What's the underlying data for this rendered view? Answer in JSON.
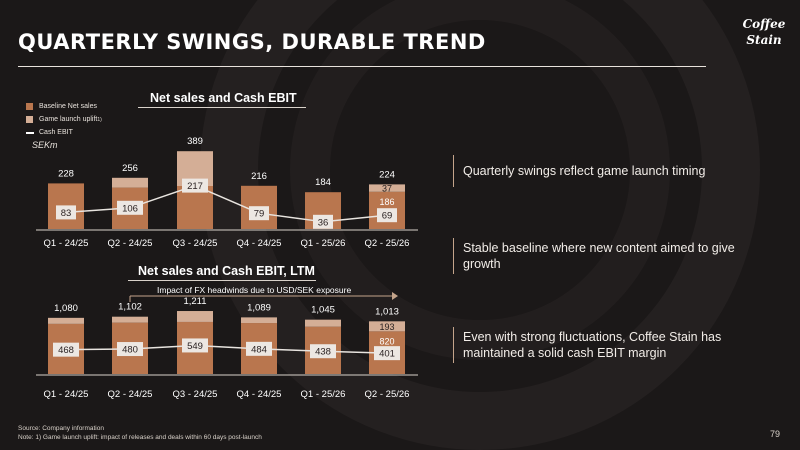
{
  "title": "QUARTERLY SWINGS, DURABLE TREND",
  "logo_text": "Coffee Stain",
  "legend": {
    "baseline": "Baseline Net sales",
    "uplift": "Game launch uplift",
    "uplift_note": "1)",
    "cash_ebit": "Cash EBIT"
  },
  "unit": "SEKm",
  "colors": {
    "baseline": "#b9764e",
    "uplift": "#d4ae96",
    "line": "#e8e4df",
    "background": "#1b1818",
    "label_box": "#ece7e2"
  },
  "fx_note": "Impact of FX headwinds due to USD/SEK exposure",
  "chart_data": [
    {
      "type": "bar",
      "title": "Net sales and Cash EBIT",
      "categories": [
        "Q1 - 24/25",
        "Q2 - 24/25",
        "Q3 - 24/25",
        "Q4 - 24/25",
        "Q1 - 25/26",
        "Q2 - 25/26"
      ],
      "totals": [
        228,
        256,
        389,
        216,
        184,
        224
      ],
      "series": [
        {
          "name": "Baseline Net sales",
          "values": [
            228,
            207,
            215,
            216,
            184,
            186
          ]
        },
        {
          "name": "Game launch uplift",
          "values": [
            0,
            49,
            174,
            0,
            0,
            37
          ]
        },
        {
          "name": "Cash EBIT",
          "kind": "line",
          "values": [
            83,
            106,
            217,
            79,
            36,
            69
          ]
        }
      ],
      "segment_labels": {
        "baseline": [
          null,
          null,
          null,
          null,
          null,
          "186"
        ],
        "uplift": [
          null,
          null,
          null,
          null,
          null,
          "37"
        ]
      }
    },
    {
      "type": "bar",
      "title": "Net sales and Cash EBIT, LTM",
      "categories": [
        "Q1 - 24/25",
        "Q2 - 24/25",
        "Q3 - 24/25",
        "Q4 - 24/25",
        "Q1 - 25/26",
        "Q2 - 25/26"
      ],
      "totals": [
        "1,080",
        "1,102",
        "1,211",
        "1,089",
        "1,045",
        "1,013"
      ],
      "series": [
        {
          "name": "Baseline Net sales",
          "values": [
            964,
            988,
            1001,
            980,
            910,
            820
          ]
        },
        {
          "name": "Game launch uplift",
          "values": [
            116,
            114,
            210,
            109,
            135,
            193
          ]
        },
        {
          "name": "Cash EBIT",
          "kind": "line",
          "values": [
            468,
            480,
            549,
            484,
            438,
            401
          ]
        }
      ],
      "segment_labels": {
        "baseline": [
          null,
          null,
          null,
          null,
          null,
          "820"
        ],
        "uplift": [
          null,
          null,
          null,
          null,
          null,
          "193"
        ]
      }
    }
  ],
  "takeaways": [
    "Quarterly swings reflect game launch timing",
    "Stable baseline where new content aimed to give growth",
    "Even with strong fluctuations, Coffee Stain has maintained a solid cash EBIT margin"
  ],
  "footer": {
    "source": "Source: Company information",
    "note": "Note: 1) Game launch uplift: impact of releases and deals within 60 days post-launch"
  },
  "page_number": "79"
}
